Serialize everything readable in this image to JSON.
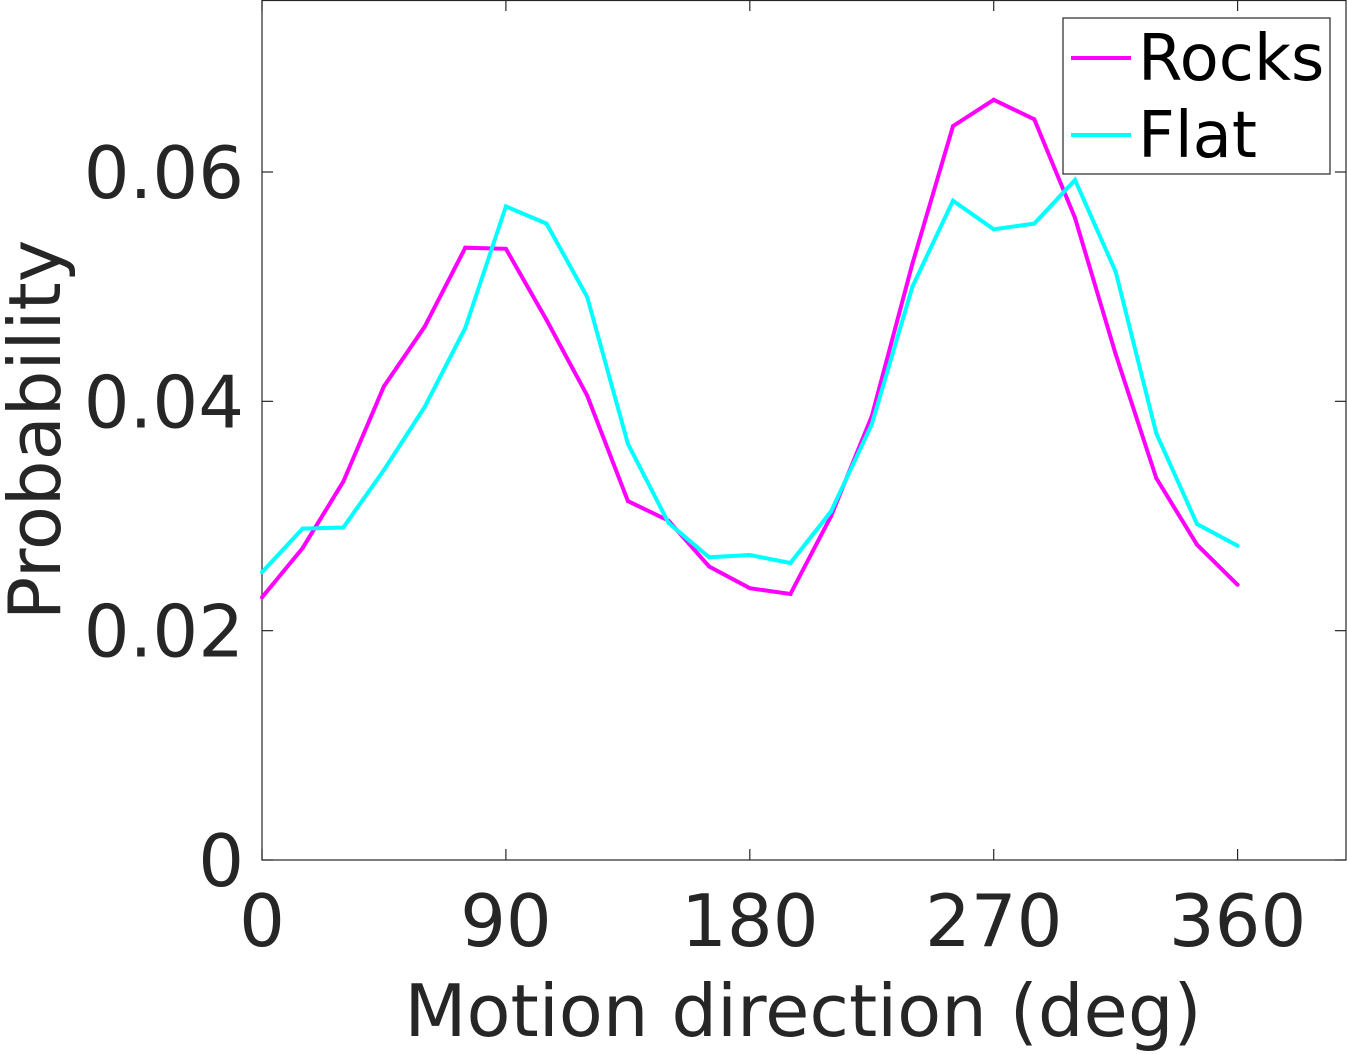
{
  "chart_data": {
    "type": "line",
    "title": "",
    "xlabel": "Motion direction (deg)",
    "ylabel": "Probability",
    "xlim": [
      0,
      400
    ],
    "ylim": [
      0,
      0.075
    ],
    "xticks": [
      0,
      90,
      180,
      270,
      360
    ],
    "xtick_labels": [
      "0",
      "90",
      "180",
      "270",
      "360"
    ],
    "yticks": [
      0,
      0.02,
      0.04,
      0.06
    ],
    "ytick_labels": [
      "0",
      "0.02",
      "0.04",
      "0.06"
    ],
    "grid": false,
    "legend_position": "top-right",
    "x": [
      0,
      15,
      30,
      45,
      60,
      75,
      90,
      105,
      120,
      135,
      150,
      165,
      180,
      195,
      210,
      225,
      240,
      255,
      270,
      285,
      300,
      315,
      330,
      345,
      360
    ],
    "series": [
      {
        "name": "Rocks",
        "color": "#ff00ff",
        "values": [
          0.0229,
          0.0272,
          0.033,
          0.0413,
          0.0465,
          0.0534,
          0.0533,
          0.0471,
          0.0405,
          0.0313,
          0.0296,
          0.0256,
          0.0237,
          0.0232,
          0.03,
          0.0387,
          0.052,
          0.064,
          0.0663,
          0.0646,
          0.056,
          0.0441,
          0.0333,
          0.0275,
          0.024
        ]
      },
      {
        "name": "Flat",
        "color": "#00ffff",
        "values": [
          0.0251,
          0.0289,
          0.029,
          0.034,
          0.0395,
          0.0464,
          0.057,
          0.0555,
          0.0491,
          0.0363,
          0.0294,
          0.0264,
          0.0266,
          0.0259,
          0.0304,
          0.038,
          0.05,
          0.0575,
          0.055,
          0.0555,
          0.0593,
          0.0513,
          0.0372,
          0.0293,
          0.0274
        ]
      }
    ]
  }
}
